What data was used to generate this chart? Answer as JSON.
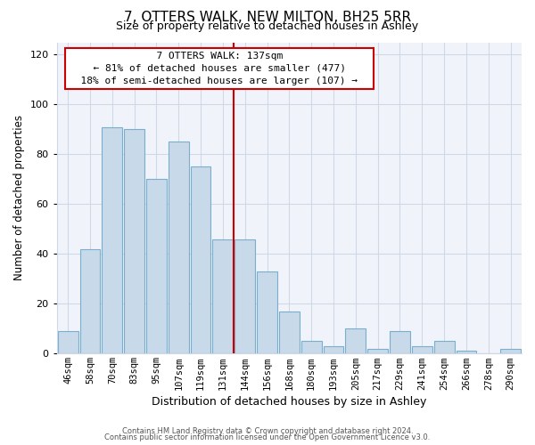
{
  "title": "7, OTTERS WALK, NEW MILTON, BH25 5RR",
  "subtitle": "Size of property relative to detached houses in Ashley",
  "xlabel": "Distribution of detached houses by size in Ashley",
  "ylabel": "Number of detached properties",
  "bar_labels": [
    "46sqm",
    "58sqm",
    "70sqm",
    "83sqm",
    "95sqm",
    "107sqm",
    "119sqm",
    "131sqm",
    "144sqm",
    "156sqm",
    "168sqm",
    "180sqm",
    "193sqm",
    "205sqm",
    "217sqm",
    "229sqm",
    "241sqm",
    "254sqm",
    "266sqm",
    "278sqm",
    "290sqm"
  ],
  "bar_values": [
    9,
    42,
    91,
    90,
    70,
    85,
    75,
    46,
    46,
    33,
    17,
    5,
    3,
    10,
    2,
    9,
    3,
    5,
    1,
    0,
    2
  ],
  "bar_color": "#c8d9ea",
  "bar_edge_color": "#7aaecf",
  "vline_color": "#cc0000",
  "ylim": [
    0,
    125
  ],
  "yticks": [
    0,
    20,
    40,
    60,
    80,
    100,
    120
  ],
  "annotation_title": "7 OTTERS WALK: 137sqm",
  "annotation_line1": "← 81% of detached houses are smaller (477)",
  "annotation_line2": "18% of semi-detached houses are larger (107) →",
  "annotation_box_color": "#ffffff",
  "annotation_box_edge": "#cc0000",
  "footer1": "Contains HM Land Registry data © Crown copyright and database right 2024.",
  "footer2": "Contains public sector information licensed under the Open Government Licence v3.0.",
  "background_color": "#ffffff",
  "plot_bg_color": "#f0f4fa",
  "grid_color": "#d0d8e8"
}
